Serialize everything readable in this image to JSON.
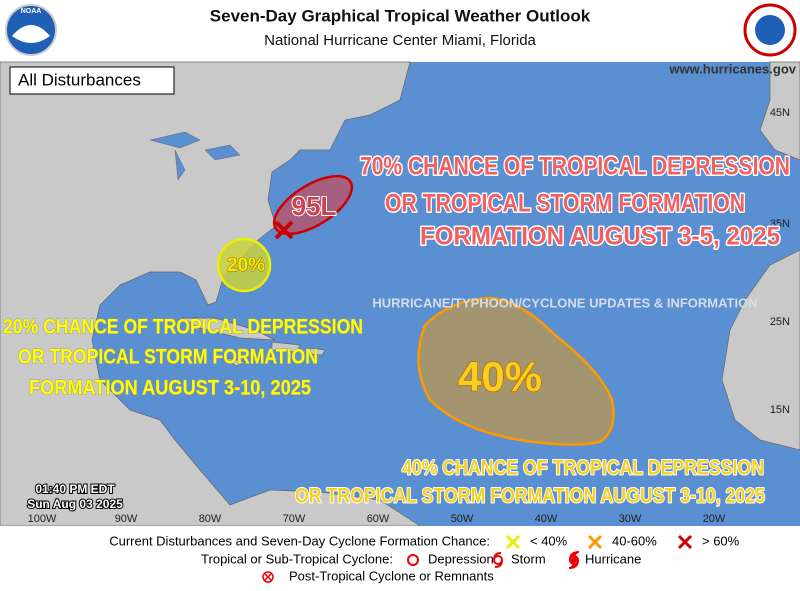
{
  "header": {
    "title": "Seven-Day Graphical Tropical Weather Outlook",
    "subtitle": "National Hurricane Center  Miami, Florida",
    "logo": "NOAA"
  },
  "map": {
    "panel_label": "All Disturbances",
    "website": "www.hurricanes.gov",
    "lat_labels": [
      "45N",
      "35N",
      "25N",
      "15N"
    ],
    "lon_labels": [
      "100W",
      "90W",
      "80W",
      "70W",
      "60W",
      "50W",
      "40W",
      "30W",
      "20W"
    ],
    "info_banner": "HURRICANE/TYPHOON/CYCLONE UPDATES & INFORMATION",
    "timestamp": [
      "01:40 PM EDT",
      "Sun Aug 03 2025"
    ],
    "areas": [
      {
        "label": "95L"
      },
      {
        "label": "20%"
      },
      {
        "label": "40%"
      }
    ],
    "notes": [
      {
        "lines": [
          "70% CHANCE OF TROPICAL DEPRESSION",
          "OR TROPICAL STORM FORMATION",
          "FORMATION AUGUST 3-5, 2025"
        ]
      },
      {
        "lines": [
          "20% CHANCE OF TROPICAL DEPRESSION",
          "OR TROPICAL STORM FORMATION",
          "FORMATION AUGUST 3-10, 2025"
        ]
      },
      {
        "lines": [
          "40% CHANCE OF TROPICAL DEPRESSION",
          "OR TROPICAL STORM FORMATION AUGUST 3-10, 2025"
        ]
      }
    ]
  },
  "legend": {
    "row1_title": "Current Disturbances and Seven-Day Cyclone Formation Chance:",
    "chances": [
      "< 40%",
      "40-60%",
      "> 60%"
    ],
    "row2_title": "Tropical or Sub-Tropical Cyclone:",
    "cyclones": [
      "Depression",
      "Storm",
      "Hurricane"
    ],
    "row3": "Post-Tropical Cyclone or Remnants"
  }
}
